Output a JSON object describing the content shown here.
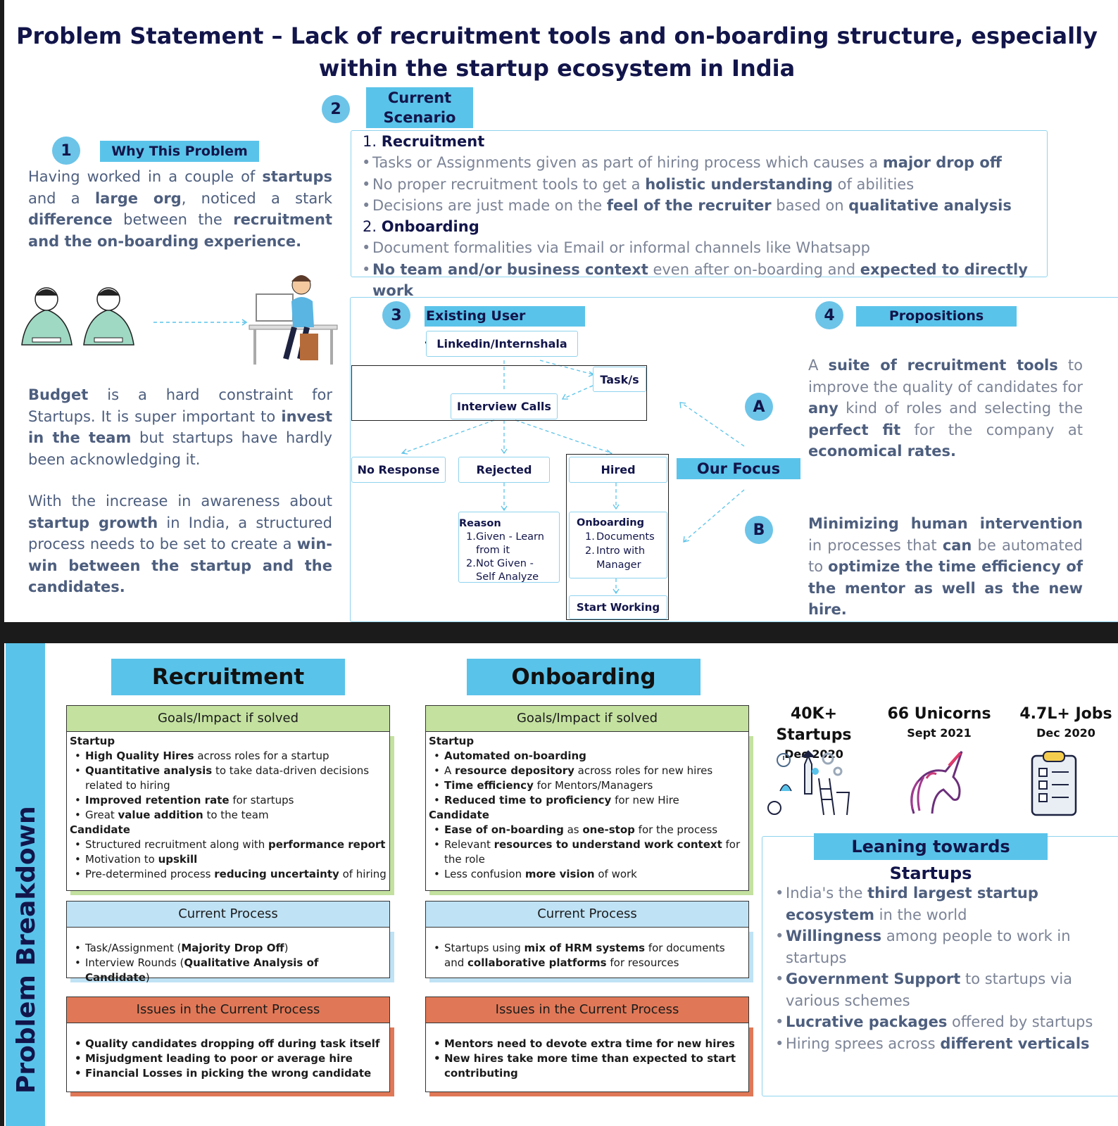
{
  "title": {
    "line1": "Problem Statement – Lack of recruitment tools and on-boarding structure, especially",
    "line2": "within the startup ecosystem in India"
  },
  "why": {
    "num": "1",
    "tag": "Why This Problem",
    "p1": {
      "s1": "Having worked in a couple of ",
      "b1": "startups",
      "s2": " and a ",
      "b2": "large org",
      "s3": ", noticed a stark ",
      "b3": "difference",
      "s4": " between the ",
      "b4": "recruitment and the on-boarding experience."
    },
    "p2": {
      "b1": "Budget",
      "s1": " is a hard constraint for Startups. It is super important to ",
      "b2": "invest in the team",
      "s2": " but startups have hardly been acknowledging it."
    },
    "p3": {
      "s1": "With the increase in awareness about ",
      "b1": "startup growth",
      "s2": " in India, a structured process needs to be set to create a ",
      "b2": "win-win between the startup and the candidates."
    }
  },
  "scenario": {
    "num": "2",
    "tag_line1": "Current",
    "tag_line2": "Scenario",
    "rec_num": "1.",
    "rec_title": "Recruitment",
    "rec1": {
      "s1": "Tasks or Assignments given as part of hiring process which causes a ",
      "b1": "major drop off"
    },
    "rec2": {
      "s1": "No proper recruitment tools to get a ",
      "b1": "holistic understanding",
      "s2": " of abilities"
    },
    "rec3": {
      "s1": "Decisions are just made on the ",
      "b1": "feel of the recruiter",
      "s2": " based on ",
      "b2": "qualitative analysis"
    },
    "onb_num": "2.",
    "onb_title": "Onboarding",
    "onb1": {
      "s1": "Document formalities via Email or informal channels like Whatsapp"
    },
    "onb2": {
      "b1": "No team and/or business context",
      "s1": " even after on-boarding and ",
      "b2": "expected to directly work"
    }
  },
  "journey": {
    "num": "3",
    "tag": "Existing User Journey",
    "linkedin": "Linkedin/Internshala",
    "tasks": "Task/s",
    "interview": "Interview Calls",
    "no_response": "No Response",
    "rejected": "Rejected",
    "hired": "Hired",
    "reason_title": "Reason",
    "reason1": "Given - Learn from it",
    "reason2": "Not Given - Self Analyze",
    "onb_title": "Onboarding",
    "onb1": "Documents",
    "onb2": "Intro with Manager",
    "start": "Start Working",
    "focus": "Our Focus",
    "a": "A",
    "b": "B"
  },
  "propositions": {
    "num": "4",
    "tag": "Propositions",
    "pa": {
      "s1": "A ",
      "b1": "suite of recruitment tools",
      "s2": " to improve the quality of candidates for ",
      "b2": "any",
      "s3": " kind of roles and selecting the ",
      "b3": "perfect fit",
      "s4": " for the company at ",
      "b4": "economical rates."
    },
    "pb": {
      "b1": "Minimizing human intervention",
      "s1": " in processes that ",
      "b2": "can",
      "s2": " be automated to ",
      "b3": "optimize the time efficiency of the mentor as well as the new hire."
    }
  },
  "breakdown": {
    "side": "Problem Breakdown",
    "recruitment": {
      "title": "Recruitment",
      "goals": "Goals/Impact if solved",
      "startup": "Startup",
      "g1": {
        "b": "High Quality Hires",
        "s": " across roles for a startup"
      },
      "g2": {
        "b": "Quantitative analysis",
        "s": " to take data-driven decisions related to hiring"
      },
      "g3": {
        "b": "Improved retention rate",
        "s": " for startups"
      },
      "g4": {
        "s1": "Great ",
        "b": "value addition",
        "s": " to the team"
      },
      "candidate": "Candidate",
      "c1": {
        "s1": "Structured recruitment along with ",
        "b": "performance report"
      },
      "c2": {
        "s1": "Motivation to ",
        "b": "upskill"
      },
      "c3": {
        "s1": "Pre-determined process ",
        "b": "reducing uncertainty",
        "s": " of hiring"
      },
      "current": "Current Process",
      "p1": {
        "s1": "Task/Assignment (",
        "b": "Majority Drop Off",
        "s": ")"
      },
      "p2": {
        "s1": "Interview Rounds (",
        "b": "Qualitative Analysis of Candidate",
        "s": ")"
      },
      "issues": "Issues in the Current Process",
      "i1": "Quality candidates dropping off during task itself",
      "i2": "Misjudgment leading to poor or average hire",
      "i3": "Financial Losses in picking the wrong candidate"
    },
    "onboarding": {
      "title": "Onboarding",
      "goals": "Goals/Impact if solved",
      "startup": "Startup",
      "g1": {
        "b": "Automated on-boarding"
      },
      "g2": {
        "s1": "A ",
        "b": "resource depository",
        "s": " across roles for new hires"
      },
      "g3": {
        "b": "Time efficiency",
        "s": " for Mentors/Managers"
      },
      "g4": {
        "b": "Reduced time to proficiency",
        "s": " for new Hire"
      },
      "candidate": "Candidate",
      "c1": {
        "b": "Ease of on-boarding",
        "s1": " as ",
        "b2": "one-stop",
        "s": " for the process"
      },
      "c2": {
        "s1": "Relevant ",
        "b": "resources to understand work context",
        "s": " for the role"
      },
      "c3": {
        "s1": "Less confusion ",
        "b": "more vision",
        "s": " of work"
      },
      "current": "Current Process",
      "p1": {
        "s1": "Startups using ",
        "b": "mix of HRM systems",
        "s": " for documents and ",
        "b2": "collaborative platforms",
        "s2": " for resources"
      },
      "issues": "Issues in the Current Process",
      "i1": "Mentors need to devote extra time for new hires",
      "i2": "New hires take more time than expected to start contributing"
    },
    "stats": [
      {
        "value": "40K+ Startups",
        "date": "Dec 2020",
        "icon": "startup-team-icon"
      },
      {
        "value": "66 Unicorns",
        "date": "Sept 2021",
        "icon": "unicorn-icon"
      },
      {
        "value": "4.7L+ Jobs",
        "date": "Dec 2020",
        "icon": "clipboard-icon"
      }
    ],
    "leaning": {
      "title": "Leaning towards Startups",
      "l1": {
        "s1": "India's the ",
        "b": "third largest startup ecosystem",
        "s": " in the world"
      },
      "l2": {
        "b": "Willingness",
        "s": " among people to work in startups"
      },
      "l3": {
        "b": "Government Support",
        "s": " to startups via various schemes"
      },
      "l4": {
        "b": "Lucrative packages",
        "s": " offered by startups"
      },
      "l5": {
        "s1": "Hiring sprees across ",
        "b": "different verticals"
      }
    }
  },
  "colors": {
    "accent": "#5ac3ea",
    "navy": "#12154a",
    "green": "#c4e1a0",
    "lightblue": "#bfe2f5",
    "orange": "#e07857"
  }
}
